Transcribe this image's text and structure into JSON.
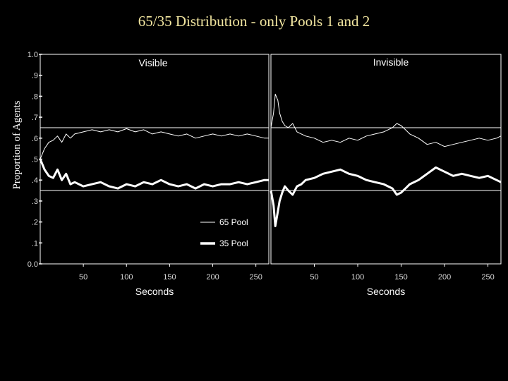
{
  "title": "65/35 Distribution - only Pools 1 and 2",
  "chart_data": {
    "type": "line",
    "title": "65/35 Distribution - only Pools 1 and 2",
    "ylabel": "Proportion of Agents",
    "ylim": [
      0.0,
      1.0
    ],
    "y_ticks": [
      {
        "value": 1.0,
        "label": "1.0"
      },
      {
        "value": 0.9,
        "label": ".9"
      },
      {
        "value": 0.8,
        "label": ".8"
      },
      {
        "value": 0.7,
        "label": ".7"
      },
      {
        "value": 0.6,
        "label": ".6"
      },
      {
        "value": 0.5,
        "label": ".5"
      },
      {
        "value": 0.4,
        "label": ".4"
      },
      {
        "value": 0.3,
        "label": ".3"
      },
      {
        "value": 0.2,
        "label": ".2"
      },
      {
        "value": 0.1,
        "label": ".1"
      },
      {
        "value": 0.0,
        "label": "0.0"
      }
    ],
    "x_ticks": [
      50,
      100,
      150,
      200,
      250
    ],
    "reference_lines": [
      0.65,
      0.35
    ],
    "legend": {
      "placement": "inside-lower-right of Visible panel",
      "entries": [
        "65 Pool",
        "35 Pool"
      ]
    },
    "grid": false,
    "panels": [
      {
        "label": "Visible",
        "xlabel": "Seconds",
        "xlim": [
          0,
          265
        ],
        "series": [
          {
            "name": "65 Pool",
            "stroke": "thin",
            "x": [
              0,
              5,
              10,
              15,
              20,
              25,
              30,
              35,
              40,
              50,
              60,
              70,
              80,
              90,
              100,
              110,
              120,
              130,
              140,
              150,
              160,
              170,
              180,
              190,
              200,
              210,
              220,
              230,
              240,
              250,
              260,
              265
            ],
            "y": [
              0.5,
              0.55,
              0.58,
              0.59,
              0.61,
              0.58,
              0.62,
              0.6,
              0.62,
              0.63,
              0.64,
              0.63,
              0.64,
              0.63,
              0.645,
              0.63,
              0.64,
              0.62,
              0.63,
              0.62,
              0.61,
              0.62,
              0.6,
              0.61,
              0.62,
              0.61,
              0.62,
              0.61,
              0.62,
              0.61,
              0.6,
              0.6
            ]
          },
          {
            "name": "35 Pool",
            "stroke": "thick",
            "x": [
              0,
              5,
              10,
              15,
              20,
              25,
              30,
              35,
              40,
              50,
              60,
              70,
              80,
              90,
              100,
              110,
              120,
              130,
              140,
              150,
              160,
              170,
              180,
              190,
              200,
              210,
              220,
              230,
              240,
              250,
              260,
              265
            ],
            "y": [
              0.5,
              0.45,
              0.42,
              0.41,
              0.45,
              0.4,
              0.43,
              0.38,
              0.39,
              0.37,
              0.38,
              0.39,
              0.37,
              0.36,
              0.38,
              0.37,
              0.39,
              0.38,
              0.4,
              0.38,
              0.37,
              0.38,
              0.36,
              0.38,
              0.37,
              0.38,
              0.38,
              0.39,
              0.38,
              0.39,
              0.4,
              0.4
            ]
          }
        ]
      },
      {
        "label": "Invisible",
        "xlabel": "Seconds",
        "xlim": [
          0,
          265
        ],
        "series": [
          {
            "name": "65 Pool",
            "stroke": "thin",
            "x": [
              0,
              3,
              5,
              8,
              10,
              13,
              16,
              20,
              25,
              30,
              35,
              40,
              50,
              60,
              70,
              80,
              90,
              100,
              110,
              120,
              130,
              140,
              145,
              150,
              155,
              160,
              170,
              180,
              190,
              200,
              210,
              220,
              230,
              240,
              250,
              260,
              265
            ],
            "y": [
              0.65,
              0.72,
              0.81,
              0.78,
              0.72,
              0.68,
              0.66,
              0.65,
              0.67,
              0.63,
              0.62,
              0.61,
              0.6,
              0.58,
              0.59,
              0.58,
              0.6,
              0.59,
              0.61,
              0.62,
              0.63,
              0.65,
              0.67,
              0.66,
              0.64,
              0.62,
              0.6,
              0.57,
              0.58,
              0.56,
              0.57,
              0.58,
              0.59,
              0.6,
              0.59,
              0.6,
              0.61
            ]
          },
          {
            "name": "35 Pool",
            "stroke": "thick",
            "x": [
              0,
              3,
              5,
              8,
              10,
              13,
              16,
              20,
              25,
              30,
              35,
              40,
              50,
              60,
              70,
              80,
              90,
              100,
              110,
              120,
              130,
              140,
              145,
              150,
              155,
              160,
              170,
              180,
              190,
              200,
              210,
              220,
              230,
              240,
              250,
              260,
              265
            ],
            "y": [
              0.35,
              0.28,
              0.18,
              0.25,
              0.3,
              0.34,
              0.37,
              0.35,
              0.33,
              0.37,
              0.38,
              0.4,
              0.41,
              0.43,
              0.44,
              0.45,
              0.43,
              0.42,
              0.4,
              0.39,
              0.38,
              0.36,
              0.33,
              0.34,
              0.36,
              0.38,
              0.4,
              0.43,
              0.46,
              0.44,
              0.42,
              0.43,
              0.42,
              0.41,
              0.42,
              0.4,
              0.39
            ]
          }
        ]
      }
    ]
  }
}
